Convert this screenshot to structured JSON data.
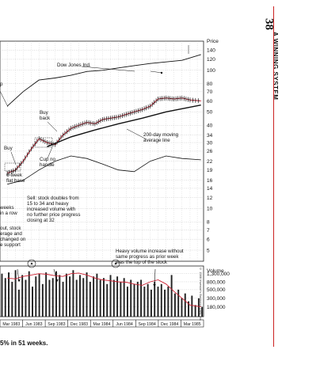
{
  "page": {
    "page_number": "38",
    "running_head": "A WINNING SYSTEM",
    "copyright": "© 1988 Investor's Business Daily, Inc.",
    "caption": "5% in 51 weeks."
  },
  "chart_data": {
    "type": "line",
    "x_ticks": [
      "Mar 1983",
      "Jun 1983",
      "Sep 1983",
      "Dec 1983",
      "Mar 1984",
      "Jun 1984",
      "Sep 1984",
      "Dec 1984",
      "Mar 1985"
    ],
    "price_axis": {
      "label": "Price",
      "ticks": [
        140,
        120,
        100,
        80,
        70,
        60,
        50,
        40,
        34,
        30,
        26,
        22,
        19,
        16,
        14,
        12,
        10,
        8,
        7,
        6,
        5
      ],
      "scale": "log",
      "ylim": [
        4.5,
        150
      ]
    },
    "volume_axis": {
      "label": "Volume",
      "ticks": [
        "1,300,000",
        "800,000",
        "500,000",
        "300,000",
        "180,000"
      ],
      "tick_values": [
        1300000,
        800000,
        500000,
        300000,
        180000
      ],
      "scale": "log",
      "ylim": [
        100000,
        1700000
      ]
    },
    "series": [
      {
        "name": "Dow Jones Ind.",
        "x": [
          "1983-03-01",
          "1983-05-01",
          "1983-07-01",
          "1983-09-01",
          "1983-11-01",
          "1984-01-01",
          "1984-03-01",
          "1984-05-01",
          "1984-07-01",
          "1984-09-01",
          "1984-11-01",
          "1985-01-01",
          "1985-03-15"
        ],
        "values": [
          55,
          70,
          85,
          88,
          92,
          98,
          100,
          104,
          108,
          112,
          115,
          118,
          130
        ]
      },
      {
        "name": "Price",
        "x": [
          "1983-03-01",
          "1983-04-01",
          "1983-05-01",
          "1983-06-01",
          "1983-07-01",
          "1983-08-01",
          "1983-09-01",
          "1983-10-01",
          "1983-11-01",
          "1983-12-01",
          "1984-01-01",
          "1984-02-01",
          "1984-03-01",
          "1984-04-01",
          "1984-05-01",
          "1984-06-01",
          "1984-07-01",
          "1984-08-01",
          "1984-09-01",
          "1984-10-01",
          "1984-11-01",
          "1984-12-01",
          "1985-01-01",
          "1985-02-01",
          "1985-03-15"
        ],
        "values": [
          18,
          19,
          22,
          27,
          32,
          30,
          29,
          34,
          38,
          40,
          42,
          41,
          44,
          45,
          46,
          48,
          50,
          52,
          55,
          62,
          63,
          62,
          63,
          61,
          60
        ]
      },
      {
        "name": "",
        "x": [
          "1983-08-01",
          "1983-11-01",
          "1984-02-01",
          "1984-05-01",
          "1984-08-01",
          "1984-11-01",
          "1985-03-15"
        ],
        "values": [
          28,
          33,
          37,
          41,
          45,
          50,
          56
        ]
      },
      {
        "name": "",
        "x": [
          "1983-03-01",
          "1983-05-01",
          "1983-07-01",
          "1983-09-01",
          "1983-11-01",
          "1984-01-01",
          "1984-03-01",
          "1984-05-01",
          "1984-07-01",
          "1984-09-01",
          "1984-11-01",
          "1985-01-01",
          "1985-03-15"
        ],
        "values": [
          15,
          16,
          19,
          22,
          24,
          23,
          21,
          19,
          18.5,
          22,
          24,
          23,
          22.5
        ]
      },
      {
        "name": "",
        "x": [
          "1983-03-01",
          "1983-04-01",
          "1983-05-01",
          "1983-06-01",
          "1983-07-01",
          "1983-08-01",
          "1983-09-01",
          "1983-10-01",
          "1983-11-01",
          "1983-12-01",
          "1984-01-01",
          "1984-02-01",
          "1984-03-01",
          "1984-04-01",
          "1984-05-01",
          "1984-06-01",
          "1984-07-01",
          "1984-08-01",
          "1984-09-01",
          "1984-10-01",
          "1984-11-01",
          "1984-12-01",
          "1985-01-01",
          "1985-02-01",
          "1985-03-15"
        ],
        "values": [
          1000000,
          950000,
          1100000,
          1200000,
          1300000,
          1250000,
          1150000,
          1100000,
          1300000,
          1350000,
          1200000,
          1000000,
          900000,
          850000,
          800000,
          780000,
          700000,
          650000,
          800000,
          900000,
          700000,
          450000,
          300000,
          200000,
          180000
        ]
      }
    ],
    "volume_bars": [
      1300000,
      1000000,
      1400000,
      800000,
      1600000,
      500000,
      1200000,
      900000,
      1500000,
      600000,
      1100000,
      1300000,
      700000,
      1400000,
      900000,
      1000000,
      1500000,
      1200000,
      800000,
      1300000,
      1100000,
      1600000,
      900000,
      1200000,
      1000000,
      1400000,
      800000,
      1100000,
      1300000,
      900000,
      1000000,
      700000,
      1200000,
      900000,
      1100000,
      800000,
      1000000,
      600000,
      900000,
      700000,
      800000,
      900000,
      600000,
      700000,
      500000,
      800000,
      600000,
      700000,
      500000,
      600000,
      1200000,
      400000,
      500000,
      300000,
      400000,
      250000,
      350000,
      200000,
      300000,
      180000
    ],
    "volume_bars_x_start": "1983-02-01",
    "volume_bars_x_end": "1985-03-25",
    "annotations": [
      {
        "text": "Dow Jones Ind."
      },
      {
        "text": "Buy"
      },
      {
        "text": "back"
      },
      {
        "text": "200-day moving"
      },
      {
        "text": "average line"
      },
      {
        "text": "Buy"
      },
      {
        "text": "Cup no"
      },
      {
        "text": "handle"
      },
      {
        "text": "6-week"
      },
      {
        "text": "flat base"
      },
      {
        "text": "Sell: stock doubles from"
      },
      {
        "text": "15 to 34 and heavy"
      },
      {
        "text": "increased volume with"
      },
      {
        "text": "no further price progress"
      },
      {
        "text": "closing at 32"
      },
      {
        "text": "weeks"
      },
      {
        "text": "in a row"
      },
      {
        "text": "out, stock"
      },
      {
        "text": "erage and"
      },
      {
        "text": "changed on"
      },
      {
        "text": "e support"
      },
      {
        "text": "Heavy volume increase without"
      },
      {
        "text": "same progress as prior week"
      },
      {
        "text": "was the top of the stock"
      },
      {
        "text": "p"
      }
    ]
  }
}
